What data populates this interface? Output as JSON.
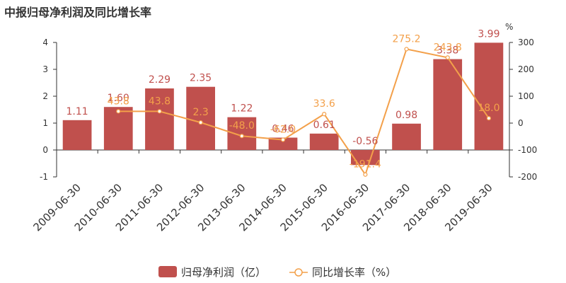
{
  "chart_data": {
    "type": "bar",
    "title": "中报归母净利润及同比增长率",
    "categories": [
      "2009-06-30",
      "2010-06-30",
      "2011-06-30",
      "2012-06-30",
      "2013-06-30",
      "2014-06-30",
      "2015-06-30",
      "2016-06-30",
      "2017-06-30",
      "2018-06-30",
      "2019-06-30"
    ],
    "y_left": {
      "ylim": [
        -1,
        4
      ],
      "ticks": [
        "-1",
        "0",
        "1",
        "2",
        "3",
        "4"
      ]
    },
    "y_right": {
      "label": "%",
      "ylim": [
        -200,
        300
      ],
      "ticks": [
        "-200",
        "-100",
        "0",
        "100",
        "200",
        "300"
      ]
    },
    "series": [
      {
        "name": "归母净利润（亿）",
        "type": "bar",
        "axis": "left",
        "color": "#c0504d",
        "values": [
          1.11,
          1.6,
          2.29,
          2.35,
          1.22,
          0.46,
          0.61,
          -0.56,
          0.98,
          3.38,
          3.99
        ],
        "labels": [
          "1.11",
          "1.60",
          "2.29",
          "2.35",
          "1.22",
          "0.46",
          "0.61",
          "-0.56",
          "0.98",
          "3.38",
          "3.99"
        ]
      },
      {
        "name": "同比增长率（%）",
        "type": "line",
        "axis": "right",
        "color": "#f3a04a",
        "values": [
          null,
          43.8,
          43.8,
          2.3,
          -48.0,
          -62.0,
          33.6,
          -191.4,
          275.2,
          243.8,
          18.0
        ],
        "labels": [
          "",
          "43.8",
          "43.8",
          "2.3",
          "-48.0",
          "-62.0",
          "33.6",
          "-191.4",
          "275.2",
          "243.8",
          "18.0"
        ]
      }
    ],
    "legend": {
      "position": "bottom"
    }
  }
}
